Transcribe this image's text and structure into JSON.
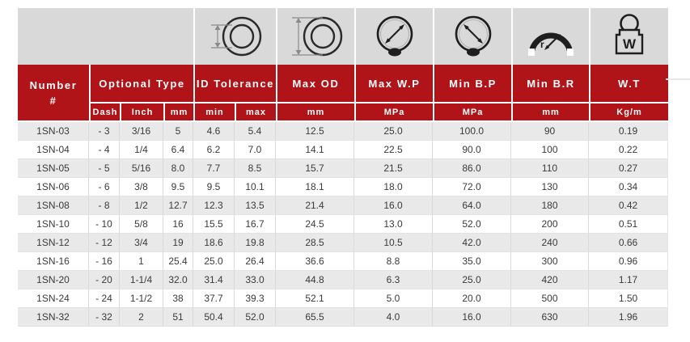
{
  "table_header": {
    "number": {
      "line1": "Number",
      "line2": "#"
    },
    "group_labels": [
      "Optional Type",
      "ID Tolerance",
      "Max OD",
      "Max W.P",
      "Min B.P",
      "Min B.R",
      "W.T"
    ],
    "sub_labels": [
      "Dash",
      "Inch",
      "mm",
      "min",
      "max",
      "mm",
      "MPa",
      "MPa",
      "mm",
      "Kg/m"
    ]
  },
  "icons": {
    "inner_diameter": "inner-diameter-cross-section-icon",
    "outer_diameter": "outer-diameter-cross-section-icon",
    "max_working_pressure": "pressure-gauge-icon",
    "min_burst_pressure": "pressure-gauge-icon",
    "min_bend_radius": "bend-radius-icon",
    "weight": "weight-icon"
  },
  "rows": [
    [
      "1SN-03",
      "- 3",
      "3/16",
      "5",
      "4.6",
      "5.4",
      "12.5",
      "25.0",
      "100.0",
      "90",
      "0.19"
    ],
    [
      "1SN-04",
      "- 4",
      "1/4",
      "6.4",
      "6.2",
      "7.0",
      "14.1",
      "22.5",
      "90.0",
      "100",
      "0.22"
    ],
    [
      "1SN-05",
      "- 5",
      "5/16",
      "8.0",
      "7.7",
      "8.5",
      "15.7",
      "21.5",
      "86.0",
      "110",
      "0.27"
    ],
    [
      "1SN-06",
      "- 6",
      "3/8",
      "9.5",
      "9.5",
      "10.1",
      "18.1",
      "18.0",
      "72.0",
      "130",
      "0.34"
    ],
    [
      "1SN-08",
      "- 8",
      "1/2",
      "12.7",
      "12.3",
      "13.5",
      "21.4",
      "16.0",
      "64.0",
      "180",
      "0.42"
    ],
    [
      "1SN-10",
      "- 10",
      "5/8",
      "16",
      "15.5",
      "16.7",
      "24.5",
      "13.0",
      "52.0",
      "200",
      "0.51"
    ],
    [
      "1SN-12",
      "- 12",
      "3/4",
      "19",
      "18.6",
      "19.8",
      "28.5",
      "10.5",
      "42.0",
      "240",
      "0.66"
    ],
    [
      "1SN-16",
      "- 16",
      "1",
      "25.4",
      "25.0",
      "26.4",
      "36.6",
      "8.8",
      "35.0",
      "300",
      "0.96"
    ],
    [
      "1SN-20",
      "- 20",
      "1-1/4",
      "32.0",
      "31.4",
      "33.0",
      "44.8",
      "6.3",
      "25.0",
      "420",
      "1.17"
    ],
    [
      "1SN-24",
      "- 24",
      "1-1/2",
      "38",
      "37.7",
      "39.3",
      "52.1",
      "5.0",
      "20.0",
      "500",
      "1.50"
    ],
    [
      "1SN-32",
      "- 32",
      "2",
      "51",
      "50.4",
      "52.0",
      "65.5",
      "4.0",
      "16.0",
      "630",
      "1.96"
    ]
  ],
  "colors": {
    "header_red": "#b01318",
    "icon_band_gray": "#d9d9d9",
    "row_alt_gray": "#e9e9ea",
    "row_white": "#ffffff",
    "data_text": "#3a3a3a",
    "header_text": "#ffffff"
  }
}
